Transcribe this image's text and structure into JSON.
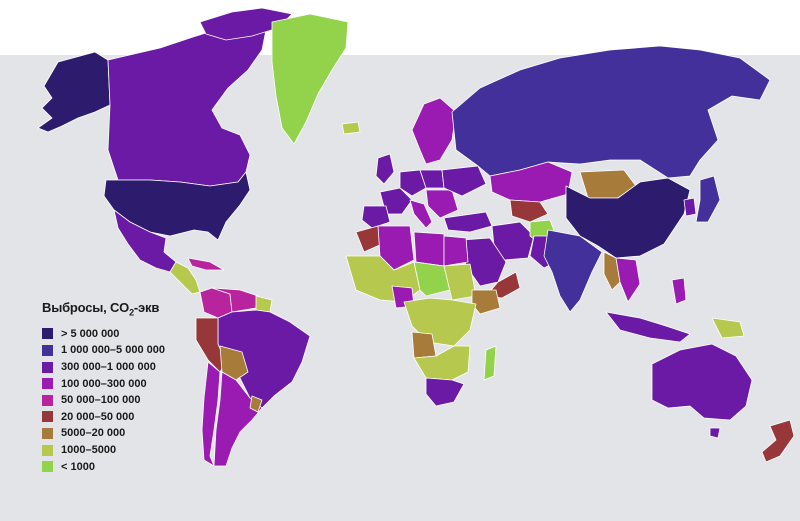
{
  "legend": {
    "title_prefix": "Выбросы, CO",
    "title_sub": "2",
    "title_suffix": "-экв",
    "classes": [
      {
        "label": "> 5 000 000",
        "color": "#2d1b6e"
      },
      {
        "label": "1 000 000–5 000 000",
        "color": "#43309a"
      },
      {
        "label": "300 000–1 000 000",
        "color": "#6a1aa5"
      },
      {
        "label": "100 000–300 000",
        "color": "#9a1bb2"
      },
      {
        "label": "50 000–100 000",
        "color": "#b8239e"
      },
      {
        "label": "20 000–50 000",
        "color": "#97373a"
      },
      {
        "label": "5000–20 000",
        "color": "#a77b3a"
      },
      {
        "label": "1000–5000",
        "color": "#b6c94e"
      },
      {
        "label": "< 1000",
        "color": "#93d24b"
      }
    ]
  },
  "colors": {
    "ocean": "#e2e4e8",
    "border": "#ffffff"
  }
}
